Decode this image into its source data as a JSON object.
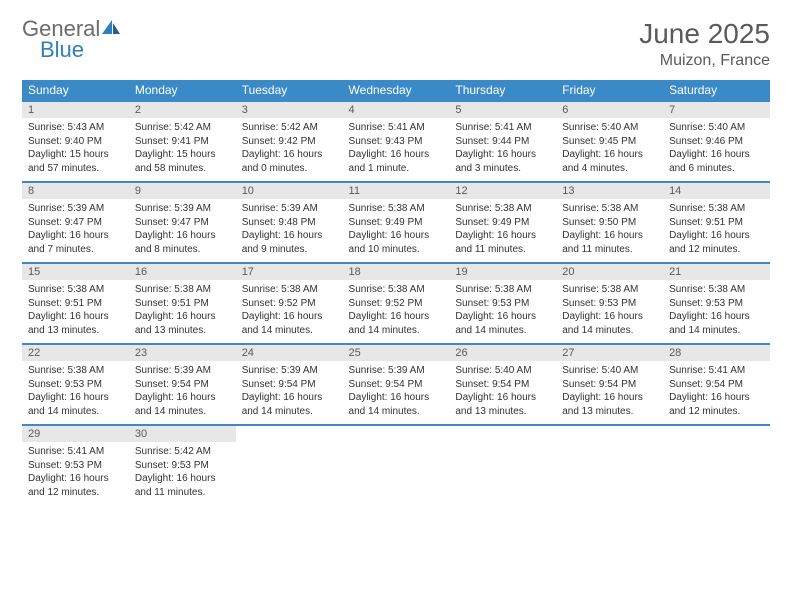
{
  "brand": {
    "general": "General",
    "blue": "Blue"
  },
  "title": "June 2025",
  "location": "Muizon, France",
  "colors": {
    "header_bg": "#3a8ac8",
    "header_text": "#ffffff",
    "daynum_bg": "#e7e7e7",
    "text_gray": "#5a5a5a",
    "logo_gray": "#6b6b6b",
    "logo_blue": "#2f7fbf",
    "rule": "#3a8ac8"
  },
  "day_names": [
    "Sunday",
    "Monday",
    "Tuesday",
    "Wednesday",
    "Thursday",
    "Friday",
    "Saturday"
  ],
  "weeks": [
    [
      {
        "n": "1",
        "sr": "Sunrise: 5:43 AM",
        "ss": "Sunset: 9:40 PM",
        "dl": "Daylight: 15 hours and 57 minutes."
      },
      {
        "n": "2",
        "sr": "Sunrise: 5:42 AM",
        "ss": "Sunset: 9:41 PM",
        "dl": "Daylight: 15 hours and 58 minutes."
      },
      {
        "n": "3",
        "sr": "Sunrise: 5:42 AM",
        "ss": "Sunset: 9:42 PM",
        "dl": "Daylight: 16 hours and 0 minutes."
      },
      {
        "n": "4",
        "sr": "Sunrise: 5:41 AM",
        "ss": "Sunset: 9:43 PM",
        "dl": "Daylight: 16 hours and 1 minute."
      },
      {
        "n": "5",
        "sr": "Sunrise: 5:41 AM",
        "ss": "Sunset: 9:44 PM",
        "dl": "Daylight: 16 hours and 3 minutes."
      },
      {
        "n": "6",
        "sr": "Sunrise: 5:40 AM",
        "ss": "Sunset: 9:45 PM",
        "dl": "Daylight: 16 hours and 4 minutes."
      },
      {
        "n": "7",
        "sr": "Sunrise: 5:40 AM",
        "ss": "Sunset: 9:46 PM",
        "dl": "Daylight: 16 hours and 6 minutes."
      }
    ],
    [
      {
        "n": "8",
        "sr": "Sunrise: 5:39 AM",
        "ss": "Sunset: 9:47 PM",
        "dl": "Daylight: 16 hours and 7 minutes."
      },
      {
        "n": "9",
        "sr": "Sunrise: 5:39 AM",
        "ss": "Sunset: 9:47 PM",
        "dl": "Daylight: 16 hours and 8 minutes."
      },
      {
        "n": "10",
        "sr": "Sunrise: 5:39 AM",
        "ss": "Sunset: 9:48 PM",
        "dl": "Daylight: 16 hours and 9 minutes."
      },
      {
        "n": "11",
        "sr": "Sunrise: 5:38 AM",
        "ss": "Sunset: 9:49 PM",
        "dl": "Daylight: 16 hours and 10 minutes."
      },
      {
        "n": "12",
        "sr": "Sunrise: 5:38 AM",
        "ss": "Sunset: 9:49 PM",
        "dl": "Daylight: 16 hours and 11 minutes."
      },
      {
        "n": "13",
        "sr": "Sunrise: 5:38 AM",
        "ss": "Sunset: 9:50 PM",
        "dl": "Daylight: 16 hours and 11 minutes."
      },
      {
        "n": "14",
        "sr": "Sunrise: 5:38 AM",
        "ss": "Sunset: 9:51 PM",
        "dl": "Daylight: 16 hours and 12 minutes."
      }
    ],
    [
      {
        "n": "15",
        "sr": "Sunrise: 5:38 AM",
        "ss": "Sunset: 9:51 PM",
        "dl": "Daylight: 16 hours and 13 minutes."
      },
      {
        "n": "16",
        "sr": "Sunrise: 5:38 AM",
        "ss": "Sunset: 9:51 PM",
        "dl": "Daylight: 16 hours and 13 minutes."
      },
      {
        "n": "17",
        "sr": "Sunrise: 5:38 AM",
        "ss": "Sunset: 9:52 PM",
        "dl": "Daylight: 16 hours and 14 minutes."
      },
      {
        "n": "18",
        "sr": "Sunrise: 5:38 AM",
        "ss": "Sunset: 9:52 PM",
        "dl": "Daylight: 16 hours and 14 minutes."
      },
      {
        "n": "19",
        "sr": "Sunrise: 5:38 AM",
        "ss": "Sunset: 9:53 PM",
        "dl": "Daylight: 16 hours and 14 minutes."
      },
      {
        "n": "20",
        "sr": "Sunrise: 5:38 AM",
        "ss": "Sunset: 9:53 PM",
        "dl": "Daylight: 16 hours and 14 minutes."
      },
      {
        "n": "21",
        "sr": "Sunrise: 5:38 AM",
        "ss": "Sunset: 9:53 PM",
        "dl": "Daylight: 16 hours and 14 minutes."
      }
    ],
    [
      {
        "n": "22",
        "sr": "Sunrise: 5:38 AM",
        "ss": "Sunset: 9:53 PM",
        "dl": "Daylight: 16 hours and 14 minutes."
      },
      {
        "n": "23",
        "sr": "Sunrise: 5:39 AM",
        "ss": "Sunset: 9:54 PM",
        "dl": "Daylight: 16 hours and 14 minutes."
      },
      {
        "n": "24",
        "sr": "Sunrise: 5:39 AM",
        "ss": "Sunset: 9:54 PM",
        "dl": "Daylight: 16 hours and 14 minutes."
      },
      {
        "n": "25",
        "sr": "Sunrise: 5:39 AM",
        "ss": "Sunset: 9:54 PM",
        "dl": "Daylight: 16 hours and 14 minutes."
      },
      {
        "n": "26",
        "sr": "Sunrise: 5:40 AM",
        "ss": "Sunset: 9:54 PM",
        "dl": "Daylight: 16 hours and 13 minutes."
      },
      {
        "n": "27",
        "sr": "Sunrise: 5:40 AM",
        "ss": "Sunset: 9:54 PM",
        "dl": "Daylight: 16 hours and 13 minutes."
      },
      {
        "n": "28",
        "sr": "Sunrise: 5:41 AM",
        "ss": "Sunset: 9:54 PM",
        "dl": "Daylight: 16 hours and 12 minutes."
      }
    ],
    [
      {
        "n": "29",
        "sr": "Sunrise: 5:41 AM",
        "ss": "Sunset: 9:53 PM",
        "dl": "Daylight: 16 hours and 12 minutes."
      },
      {
        "n": "30",
        "sr": "Sunrise: 5:42 AM",
        "ss": "Sunset: 9:53 PM",
        "dl": "Daylight: 16 hours and 11 minutes."
      },
      null,
      null,
      null,
      null,
      null
    ]
  ]
}
